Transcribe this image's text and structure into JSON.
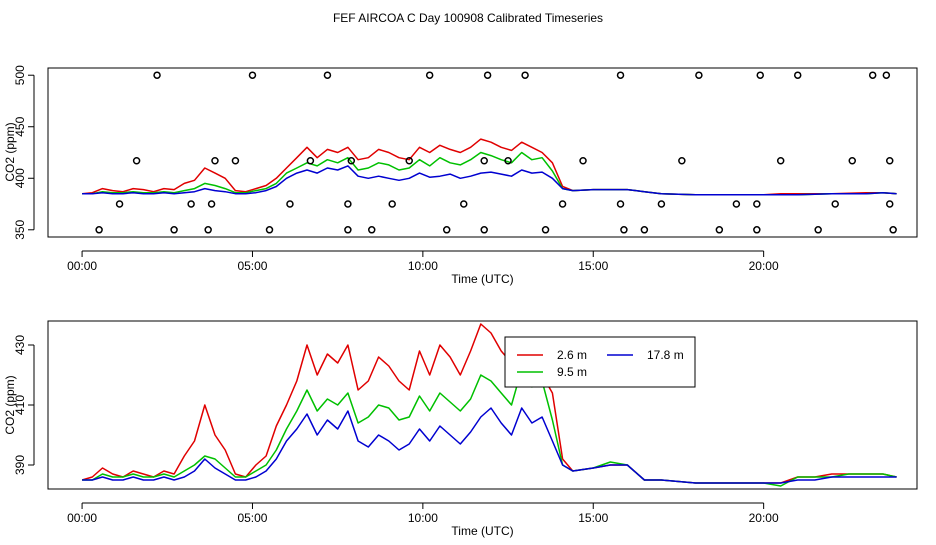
{
  "title": "FEF AIRCOA C  Day 100908  Calibrated Timeseries",
  "colors": {
    "h26": "#e00000",
    "h95": "#00c000",
    "h178": "#0000d0",
    "frame": "#000000"
  },
  "chart_data": [
    {
      "type": "line",
      "panel": "top",
      "xlabel": "Time (UTC)",
      "ylabel": "CO2 (ppm)",
      "xlim": [
        -1,
        24.5
      ],
      "ylim": [
        343,
        507
      ],
      "xticks": [
        0,
        5,
        10,
        15,
        20
      ],
      "xtick_labels": [
        "00:00",
        "05:00",
        "10:00",
        "15:00",
        "20:00"
      ],
      "yticks": [
        350,
        400,
        450,
        500
      ],
      "ytick_labels": [
        "350",
        "400",
        "450",
        "500"
      ],
      "series": [
        {
          "name": "2.6 m",
          "color": "#e00000",
          "x": [
            0.0,
            0.3,
            0.6,
            0.9,
            1.2,
            1.5,
            1.8,
            2.1,
            2.4,
            2.7,
            3.0,
            3.3,
            3.6,
            3.9,
            4.2,
            4.5,
            4.8,
            5.1,
            5.4,
            5.7,
            6.0,
            6.3,
            6.6,
            6.9,
            7.2,
            7.5,
            7.8,
            8.1,
            8.4,
            8.7,
            9.0,
            9.3,
            9.6,
            9.9,
            10.2,
            10.5,
            10.8,
            11.1,
            11.4,
            11.7,
            12.0,
            12.3,
            12.6,
            12.9,
            13.2,
            13.5,
            13.8,
            14.1,
            14.4,
            15.0,
            16.0,
            16.5,
            17.0,
            18.0,
            19.0,
            20.0,
            20.5,
            21.0,
            22.0,
            23.0,
            23.5,
            23.9
          ],
          "y": [
            385,
            386,
            390,
            388,
            387,
            390,
            389,
            387,
            390,
            389,
            395,
            398,
            410,
            405,
            400,
            388,
            387,
            390,
            393,
            400,
            410,
            420,
            430,
            420,
            428,
            425,
            430,
            418,
            420,
            428,
            425,
            420,
            418,
            430,
            425,
            432,
            428,
            425,
            430,
            438,
            435,
            430,
            427,
            435,
            430,
            425,
            415,
            392,
            388,
            389,
            389,
            387,
            385,
            384,
            384,
            384,
            385,
            385,
            385,
            386,
            386,
            385
          ]
        },
        {
          "name": "9.5 m",
          "color": "#00c000",
          "x": [
            0.0,
            0.3,
            0.6,
            0.9,
            1.2,
            1.5,
            1.8,
            2.1,
            2.4,
            2.7,
            3.0,
            3.3,
            3.6,
            3.9,
            4.2,
            4.5,
            4.8,
            5.1,
            5.4,
            5.7,
            6.0,
            6.3,
            6.6,
            6.9,
            7.2,
            7.5,
            7.8,
            8.1,
            8.4,
            8.7,
            9.0,
            9.3,
            9.6,
            9.9,
            10.2,
            10.5,
            10.8,
            11.1,
            11.4,
            11.7,
            12.0,
            12.3,
            12.6,
            12.9,
            13.2,
            13.5,
            13.8,
            14.1,
            14.4,
            15.0,
            16.0,
            16.5,
            17.0,
            18.0,
            19.0,
            20.0,
            20.5,
            21.0,
            22.0,
            23.0,
            23.5,
            23.9
          ],
          "y": [
            385,
            385,
            387,
            386,
            386,
            387,
            386,
            386,
            387,
            386,
            388,
            390,
            395,
            393,
            390,
            386,
            386,
            388,
            390,
            395,
            405,
            410,
            415,
            412,
            418,
            415,
            420,
            408,
            410,
            415,
            413,
            408,
            410,
            418,
            412,
            420,
            415,
            413,
            418,
            425,
            422,
            418,
            415,
            425,
            418,
            420,
            407,
            390,
            388,
            389,
            389,
            387,
            385,
            384,
            384,
            384,
            384,
            384,
            385,
            385,
            386,
            385
          ]
        },
        {
          "name": "17.8 m",
          "color": "#0000d0",
          "x": [
            0.0,
            0.3,
            0.6,
            0.9,
            1.2,
            1.5,
            1.8,
            2.1,
            2.4,
            2.7,
            3.0,
            3.3,
            3.6,
            3.9,
            4.2,
            4.5,
            4.8,
            5.1,
            5.4,
            5.7,
            6.0,
            6.3,
            6.6,
            6.9,
            7.2,
            7.5,
            7.8,
            8.1,
            8.4,
            8.7,
            9.0,
            9.3,
            9.6,
            9.9,
            10.2,
            10.5,
            10.8,
            11.1,
            11.4,
            11.7,
            12.0,
            12.3,
            12.6,
            12.9,
            13.2,
            13.5,
            13.8,
            14.1,
            14.4,
            15.0,
            16.0,
            16.5,
            17.0,
            18.0,
            19.0,
            20.0,
            20.5,
            21.0,
            22.0,
            23.0,
            23.5,
            23.9
          ],
          "y": [
            385,
            385,
            386,
            385,
            385,
            386,
            385,
            385,
            386,
            385,
            386,
            387,
            390,
            388,
            387,
            385,
            385,
            386,
            388,
            392,
            400,
            405,
            408,
            405,
            410,
            408,
            412,
            402,
            400,
            402,
            400,
            398,
            400,
            405,
            401,
            402,
            404,
            400,
            402,
            405,
            406,
            404,
            402,
            408,
            405,
            406,
            400,
            390,
            388,
            389,
            389,
            387,
            385,
            384,
            384,
            384,
            384,
            384,
            385,
            385,
            386,
            385
          ]
        }
      ],
      "sample_points": {
        "x": [
          0.5,
          1.1,
          1.6,
          2.2,
          2.7,
          3.2,
          3.7,
          3.8,
          3.9,
          4.5,
          5.0,
          5.5,
          6.1,
          6.7,
          7.2,
          7.8,
          7.8,
          7.9,
          8.5,
          9.1,
          9.6,
          10.2,
          10.7,
          11.2,
          11.8,
          11.8,
          11.9,
          12.5,
          13.0,
          13.6,
          14.1,
          14.7,
          15.8,
          15.8,
          15.9,
          16.5,
          17.0,
          17.6,
          18.1,
          18.7,
          19.2,
          19.8,
          19.8,
          19.9,
          20.5,
          21.0,
          21.6,
          22.1,
          22.6,
          23.2,
          23.6,
          23.7,
          23.7,
          23.8
        ],
        "y": [
          350,
          375,
          417,
          500,
          350,
          375,
          350,
          375,
          417,
          417,
          500,
          350,
          375,
          417,
          500,
          350,
          375,
          417,
          350,
          375,
          417,
          500,
          350,
          375,
          350,
          417,
          500,
          417,
          500,
          350,
          375,
          417,
          500,
          375,
          350,
          350,
          375,
          417,
          500,
          350,
          375,
          350,
          375,
          500,
          417,
          500,
          350,
          375,
          417,
          500,
          500,
          375,
          417,
          350
        ]
      }
    },
    {
      "type": "line",
      "panel": "bottom",
      "xlabel": "Time (UTC)",
      "ylabel": "CO2 (ppm)",
      "xlim": [
        -1,
        24.5
      ],
      "ylim": [
        382,
        438
      ],
      "xticks": [
        0,
        5,
        10,
        15,
        20
      ],
      "xtick_labels": [
        "00:00",
        "05:00",
        "10:00",
        "15:00",
        "20:00"
      ],
      "yticks": [
        390,
        410,
        430
      ],
      "ytick_labels": [
        "390",
        "410",
        "430"
      ],
      "legend": {
        "position": "top-right",
        "entries": [
          "2.6 m",
          "9.5 m",
          "17.8 m"
        ]
      },
      "series": [
        {
          "name": "2.6 m",
          "color": "#e00000",
          "x": [
            0.0,
            0.3,
            0.6,
            0.9,
            1.2,
            1.5,
            1.8,
            2.1,
            2.4,
            2.7,
            3.0,
            3.3,
            3.6,
            3.9,
            4.2,
            4.5,
            4.8,
            5.1,
            5.4,
            5.7,
            6.0,
            6.3,
            6.6,
            6.9,
            7.2,
            7.5,
            7.8,
            8.1,
            8.4,
            8.7,
            9.0,
            9.3,
            9.6,
            9.9,
            10.2,
            10.5,
            10.8,
            11.1,
            11.4,
            11.7,
            12.0,
            12.3,
            12.6,
            12.9,
            13.2,
            13.5,
            13.8,
            14.1,
            14.4,
            15.0,
            15.5,
            16.0,
            16.5,
            17.0,
            18.0,
            19.0,
            20.0,
            20.5,
            21.0,
            21.5,
            22.0,
            22.5,
            23.0,
            23.5,
            23.9
          ],
          "y": [
            385,
            386,
            389,
            387,
            386,
            388,
            387,
            386,
            388,
            387,
            393,
            398,
            410,
            400,
            395,
            387,
            386,
            390,
            393,
            403,
            410,
            418,
            430,
            420,
            427,
            424,
            430,
            415,
            418,
            426,
            423,
            418,
            415,
            428,
            420,
            430,
            426,
            420,
            428,
            437,
            434,
            428,
            424,
            432,
            428,
            420,
            414,
            392,
            388,
            389,
            390,
            390,
            385,
            385,
            384,
            384,
            384,
            384,
            386,
            386,
            387,
            387,
            387,
            387,
            386
          ]
        },
        {
          "name": "9.5 m",
          "color": "#00c000",
          "x": [
            0.0,
            0.3,
            0.6,
            0.9,
            1.2,
            1.5,
            1.8,
            2.1,
            2.4,
            2.7,
            3.0,
            3.3,
            3.6,
            3.9,
            4.2,
            4.5,
            4.8,
            5.1,
            5.4,
            5.7,
            6.0,
            6.3,
            6.6,
            6.9,
            7.2,
            7.5,
            7.8,
            8.1,
            8.4,
            8.7,
            9.0,
            9.3,
            9.6,
            9.9,
            10.2,
            10.5,
            10.8,
            11.1,
            11.4,
            11.7,
            12.0,
            12.3,
            12.6,
            12.9,
            13.2,
            13.5,
            13.8,
            14.1,
            14.4,
            15.0,
            15.5,
            16.0,
            16.5,
            17.0,
            18.0,
            19.0,
            20.0,
            20.5,
            21.0,
            21.5,
            22.0,
            22.5,
            23.0,
            23.5,
            23.9
          ],
          "y": [
            385,
            385,
            387,
            386,
            386,
            387,
            386,
            386,
            387,
            386,
            388,
            390,
            393,
            392,
            389,
            386,
            386,
            388,
            390,
            395,
            402,
            408,
            415,
            408,
            412,
            410,
            414,
            404,
            406,
            410,
            409,
            405,
            406,
            413,
            408,
            414,
            411,
            408,
            412,
            420,
            418,
            414,
            410,
            422,
            416,
            418,
            405,
            390,
            388,
            389,
            391,
            390,
            385,
            385,
            384,
            384,
            384,
            383,
            386,
            386,
            386,
            387,
            387,
            387,
            386
          ]
        },
        {
          "name": "17.8 m",
          "color": "#0000d0",
          "x": [
            0.0,
            0.3,
            0.6,
            0.9,
            1.2,
            1.5,
            1.8,
            2.1,
            2.4,
            2.7,
            3.0,
            3.3,
            3.6,
            3.9,
            4.2,
            4.5,
            4.8,
            5.1,
            5.4,
            5.7,
            6.0,
            6.3,
            6.6,
            6.9,
            7.2,
            7.5,
            7.8,
            8.1,
            8.4,
            8.7,
            9.0,
            9.3,
            9.6,
            9.9,
            10.2,
            10.5,
            10.8,
            11.1,
            11.4,
            11.7,
            12.0,
            12.3,
            12.6,
            12.9,
            13.2,
            13.5,
            13.8,
            14.1,
            14.4,
            15.0,
            15.5,
            16.0,
            16.5,
            17.0,
            18.0,
            19.0,
            20.0,
            20.5,
            21.0,
            21.5,
            22.0,
            22.5,
            23.0,
            23.5,
            23.9
          ],
          "y": [
            385,
            385,
            386,
            385,
            385,
            386,
            385,
            385,
            386,
            385,
            386,
            388,
            392,
            389,
            387,
            385,
            385,
            386,
            388,
            392,
            398,
            402,
            407,
            400,
            405,
            402,
            408,
            398,
            396,
            400,
            398,
            395,
            397,
            402,
            398,
            403,
            400,
            397,
            401,
            406,
            409,
            404,
            400,
            409,
            404,
            406,
            398,
            390,
            388,
            389,
            390,
            390,
            385,
            385,
            384,
            384,
            384,
            384,
            385,
            385,
            386,
            386,
            386,
            386,
            386
          ]
        }
      ]
    }
  ]
}
